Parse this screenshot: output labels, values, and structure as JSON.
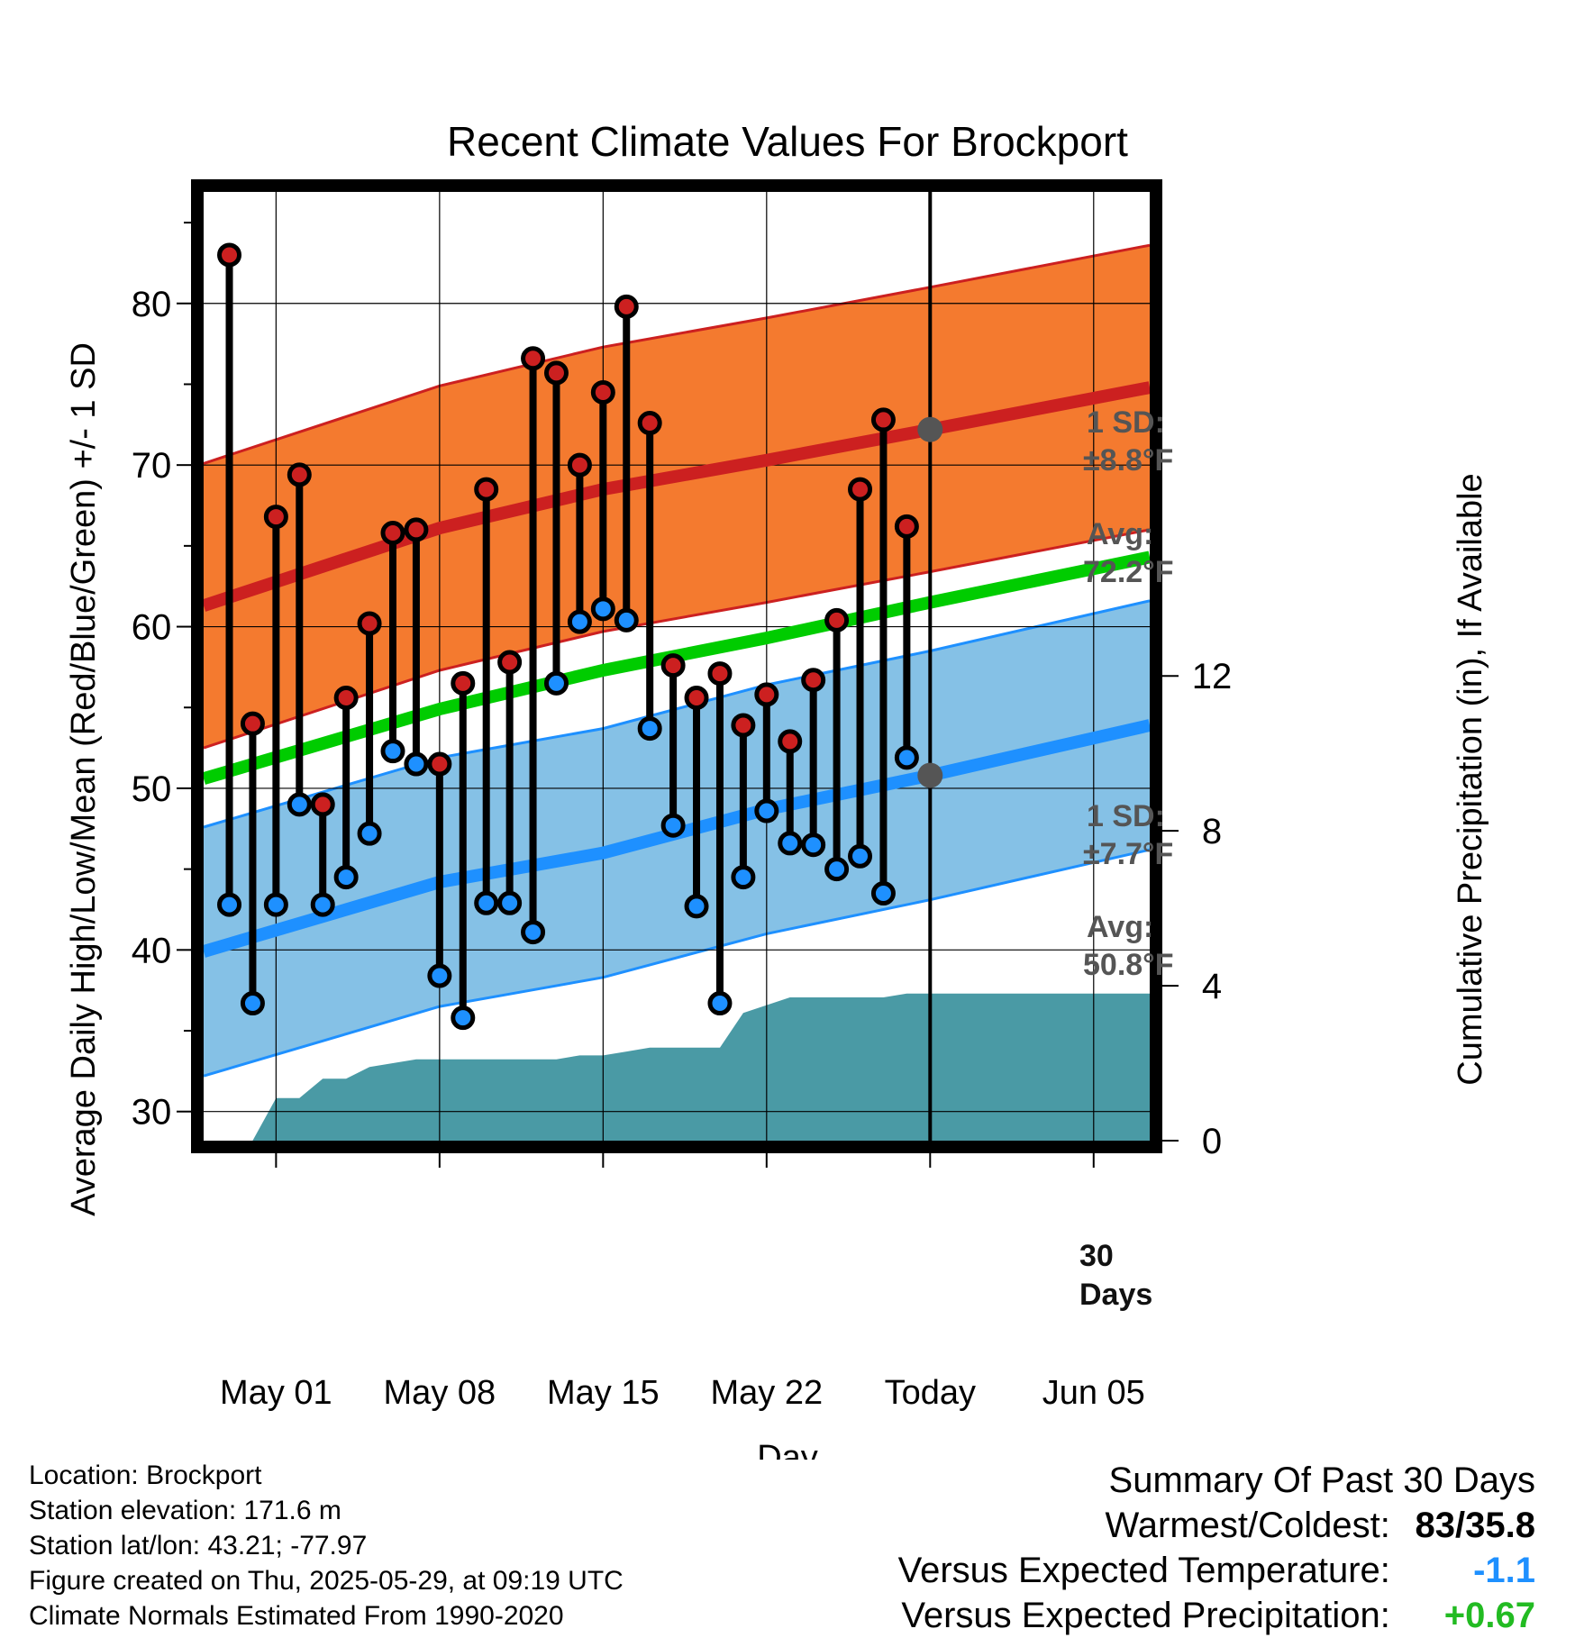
{
  "title": "Recent Climate Values For Brockport",
  "axes": {
    "y_left_label": "Average Daily High/Low/Mean (Red/Blue/Green) +/- 1 SD",
    "y_right_label": "Cumulative Precipitation (in), If Available",
    "x_label": "Day"
  },
  "annotations": {
    "high_sd_line1": "1 SD:",
    "high_sd_line2": "±8.8°F",
    "high_avg_line1": "Avg:",
    "high_avg_line2": "72.2°F",
    "low_sd_line1": "1 SD:",
    "low_sd_line2": "±7.7°F",
    "low_avg_line1": "Avg:",
    "low_avg_line2": "50.8°F",
    "window_line1": "30",
    "window_line2": "Days"
  },
  "info": {
    "location": "Location: Brockport",
    "elevation": "Station elevation: 171.6 m",
    "latlon": "Station lat/lon: 43.21; -77.97",
    "created": "Figure created on Thu, 2025-05-29, at 09:19 UTC",
    "normals": "Climate Normals Estimated From 1990-2020"
  },
  "summary": {
    "heading": "Summary Of Past 30 Days",
    "warm_cold_label": "Warmest/Coldest:",
    "warm_cold_value": "83/35.8",
    "temp_label": "Versus Expected Temperature:",
    "temp_value": "-1.1",
    "precip_label": "Versus Expected Precipitation:",
    "precip_value": "+0.67"
  },
  "colors": {
    "high_band": "#f47a2f",
    "high_line": "#cc2020",
    "low_band": "#85c1e6",
    "low_line": "#1e90ff",
    "mean_line": "#00cc00",
    "precip_fill": "#4a9aa5",
    "high_dot": "#cc2020",
    "low_dot": "#1e90ff",
    "stat_dot": "#555555",
    "temp_value": "#1e90ff",
    "precip_value": "#22bb22"
  },
  "chart_data": {
    "type": "line",
    "x_ticks": [
      "May 01",
      "May 08",
      "May 15",
      "May 22",
      "Today",
      "Jun 05"
    ],
    "x_tick_days": [
      1,
      8,
      15,
      22,
      29,
      36
    ],
    "x_range": [
      -2.1,
      38.4
    ],
    "y_left": {
      "ticks": [
        30,
        40,
        50,
        60,
        70,
        80
      ],
      "range": [
        28.2,
        86.9
      ]
    },
    "y_right": {
      "ticks": [
        0,
        4,
        8,
        12
      ],
      "range": [
        0,
        24.5
      ]
    },
    "grid": true,
    "daily": [
      {
        "day": -1,
        "high": 83.0,
        "low": 42.8
      },
      {
        "day": 0,
        "high": 54.0,
        "low": 36.7
      },
      {
        "day": 1,
        "high": 66.8,
        "low": 42.8
      },
      {
        "day": 2,
        "high": 69.4,
        "low": 49.0
      },
      {
        "day": 3,
        "high": 49.0,
        "low": 42.8
      },
      {
        "day": 4,
        "high": 55.6,
        "low": 44.5
      },
      {
        "day": 5,
        "high": 60.2,
        "low": 47.2
      },
      {
        "day": 6,
        "high": 65.8,
        "low": 52.3
      },
      {
        "day": 7,
        "high": 66.0,
        "low": 51.5
      },
      {
        "day": 8,
        "high": 51.5,
        "low": 38.4
      },
      {
        "day": 9,
        "high": 56.5,
        "low": 35.8
      },
      {
        "day": 10,
        "high": 68.5,
        "low": 42.9
      },
      {
        "day": 11,
        "high": 57.8,
        "low": 42.9
      },
      {
        "day": 12,
        "high": 76.6,
        "low": 41.1
      },
      {
        "day": 13,
        "high": 75.7,
        "low": 56.5
      },
      {
        "day": 14,
        "high": 70.0,
        "low": 60.3
      },
      {
        "day": 15,
        "high": 74.5,
        "low": 61.1
      },
      {
        "day": 16,
        "high": 79.8,
        "low": 60.4
      },
      {
        "day": 17,
        "high": 72.6,
        "low": 53.7
      },
      {
        "day": 18,
        "high": 57.6,
        "low": 47.7
      },
      {
        "day": 19,
        "high": 55.6,
        "low": 42.7
      },
      {
        "day": 20,
        "high": 57.1,
        "low": 36.7
      },
      {
        "day": 21,
        "high": 53.9,
        "low": 44.5
      },
      {
        "day": 22,
        "high": 55.8,
        "low": 48.6
      },
      {
        "day": 23,
        "high": 52.9,
        "low": 46.6
      },
      {
        "day": 24,
        "high": 56.7,
        "low": 46.5
      },
      {
        "day": 25,
        "high": 60.4,
        "low": 45.0
      },
      {
        "day": 26,
        "high": 68.5,
        "low": 45.8
      },
      {
        "day": 27,
        "high": 72.8,
        "low": 43.5
      },
      {
        "day": 28,
        "high": 66.2,
        "low": 51.9
      }
    ],
    "normals": {
      "day": [
        -2.1,
        8,
        15,
        22,
        29,
        38.4
      ],
      "high_mean": [
        61.3,
        66.1,
        68.5,
        70.3,
        72.2,
        74.8
      ],
      "low_mean": [
        39.9,
        44.2,
        46.0,
        48.7,
        50.8,
        53.9
      ],
      "mean": [
        50.6,
        54.9,
        57.3,
        59.3,
        61.5,
        64.3
      ],
      "high_sd": 8.8,
      "low_sd": 7.7
    },
    "today": {
      "day": 29,
      "high_avg": 72.2,
      "low_avg": 50.8
    },
    "precip": {
      "day": [
        -1,
        0,
        1,
        2,
        3,
        4,
        5,
        6,
        7,
        8,
        9,
        10,
        11,
        12,
        13,
        14,
        15,
        16,
        17,
        18,
        19,
        20,
        21,
        22,
        23,
        24,
        25,
        26,
        27,
        28,
        38.4
      ],
      "value": [
        0,
        0,
        1.1,
        1.1,
        1.6,
        1.6,
        1.9,
        2.0,
        2.1,
        2.1,
        2.1,
        2.1,
        2.1,
        2.1,
        2.1,
        2.2,
        2.2,
        2.3,
        2.4,
        2.4,
        2.4,
        2.4,
        3.3,
        3.5,
        3.7,
        3.7,
        3.7,
        3.7,
        3.7,
        3.8,
        3.8
      ]
    }
  }
}
